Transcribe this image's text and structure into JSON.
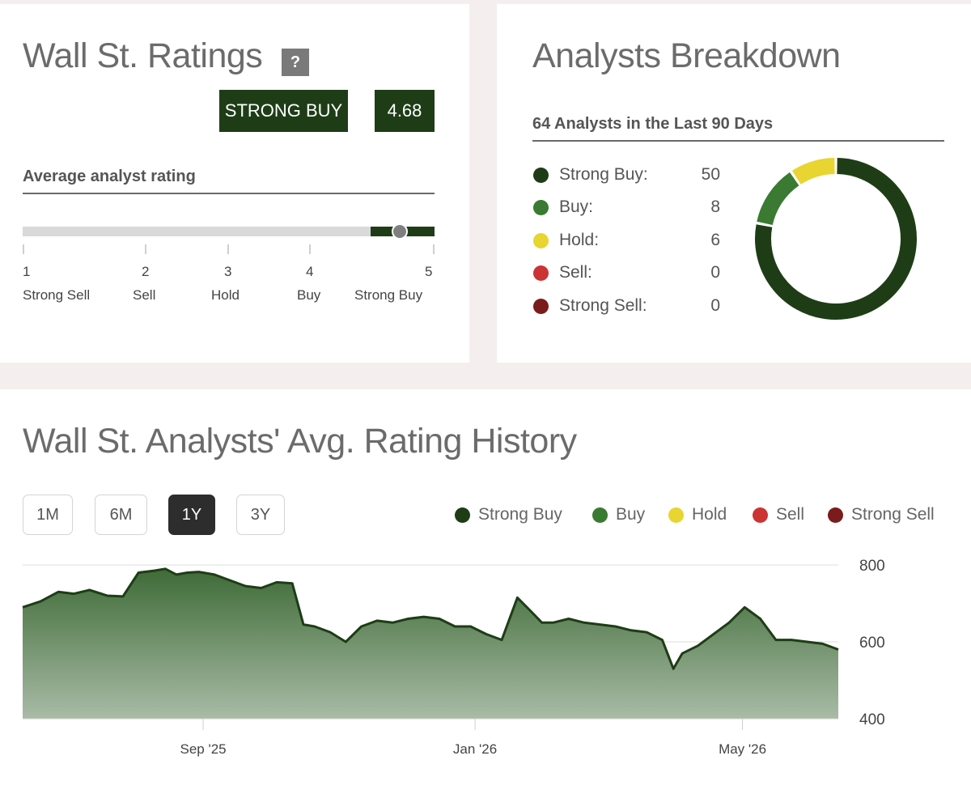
{
  "ratings": {
    "title": "Wall St. Ratings",
    "help_label": "?",
    "badge_label": "STRONG BUY",
    "badge_value": "4.68",
    "section_title": "Average analyst rating",
    "scale": [
      {
        "num": "1",
        "label": "Strong Sell"
      },
      {
        "num": "2",
        "label": "Sell"
      },
      {
        "num": "3",
        "label": "Hold"
      },
      {
        "num": "4",
        "label": "Buy"
      },
      {
        "num": "5",
        "label": "Strong Buy"
      }
    ],
    "marker_value": 4.68
  },
  "breakdown": {
    "title": "Analysts Breakdown",
    "subtitle": "64 Analysts in the Last 90 Days",
    "items": [
      {
        "label": "Strong Buy:",
        "count": "50",
        "color": "#1e3d17"
      },
      {
        "label": "Buy:",
        "count": "8",
        "color": "#3a7a32"
      },
      {
        "label": "Hold:",
        "count": "6",
        "color": "#e8d531"
      },
      {
        "label": "Sell:",
        "count": "0",
        "color": "#cc3333"
      },
      {
        "label": "Strong Sell:",
        "count": "0",
        "color": "#7a1c1c"
      }
    ]
  },
  "history": {
    "title": "Wall St. Analysts' Avg. Rating History",
    "ranges": [
      "1M",
      "6M",
      "1Y",
      "3Y"
    ],
    "active_range": "1Y",
    "legend": [
      {
        "label": "Strong Buy",
        "color": "#1e3d17"
      },
      {
        "label": "Buy",
        "color": "#3a7a32"
      },
      {
        "label": "Hold",
        "color": "#e8d531"
      },
      {
        "label": "Sell",
        "color": "#cc3333"
      },
      {
        "label": "Strong Sell",
        "color": "#7a1c1c"
      }
    ]
  },
  "chart_data": {
    "type": "area",
    "title": "Wall St. Analysts' Avg. Rating History",
    "xlabel": "",
    "ylabel": "",
    "x_ticks": [
      "Sep '25",
      "Jan '26",
      "May '26"
    ],
    "x_tick_dates": [
      "2025-09-01",
      "2026-01-01",
      "2026-05-01"
    ],
    "y_ticks": [
      400,
      600,
      800
    ],
    "ylim": [
      400,
      800
    ],
    "xlim": [
      "2025-06-12",
      "2026-06-13"
    ],
    "grid": true,
    "axis_position": "right",
    "series": [
      {
        "color": "#1e3d17",
        "x": [
          "2025-06-12",
          "2025-06-20",
          "2025-06-28",
          "2025-07-05",
          "2025-07-12",
          "2025-07-20",
          "2025-07-27",
          "2025-08-03",
          "2025-08-10",
          "2025-08-15",
          "2025-08-20",
          "2025-08-25",
          "2025-08-30",
          "2025-09-06",
          "2025-09-13",
          "2025-09-20",
          "2025-09-27",
          "2025-10-04",
          "2025-10-11",
          "2025-10-16",
          "2025-10-21",
          "2025-10-28",
          "2025-11-04",
          "2025-11-11",
          "2025-11-18",
          "2025-11-25",
          "2025-12-02",
          "2025-12-09",
          "2025-12-16",
          "2025-12-23",
          "2025-12-30",
          "2026-01-06",
          "2026-01-13",
          "2026-01-20",
          "2026-01-26",
          "2026-01-31",
          "2026-02-05",
          "2026-02-12",
          "2026-02-19",
          "2026-02-26",
          "2026-03-05",
          "2026-03-12",
          "2026-03-19",
          "2026-03-26",
          "2026-03-31",
          "2026-04-04",
          "2026-04-11",
          "2026-04-18",
          "2026-04-25",
          "2026-05-02",
          "2026-05-09",
          "2026-05-16",
          "2026-05-23",
          "2026-05-30",
          "2026-06-06",
          "2026-06-13"
        ],
        "values": [
          690,
          705,
          730,
          725,
          735,
          720,
          718,
          780,
          785,
          790,
          775,
          780,
          782,
          775,
          760,
          745,
          740,
          755,
          752,
          645,
          640,
          625,
          600,
          640,
          655,
          650,
          660,
          665,
          660,
          640,
          640,
          620,
          605,
          715,
          680,
          650,
          650,
          660,
          650,
          645,
          640,
          630,
          625,
          605,
          530,
          570,
          590,
          620,
          650,
          690,
          660,
          605,
          605,
          600,
          595,
          580
        ]
      }
    ]
  }
}
